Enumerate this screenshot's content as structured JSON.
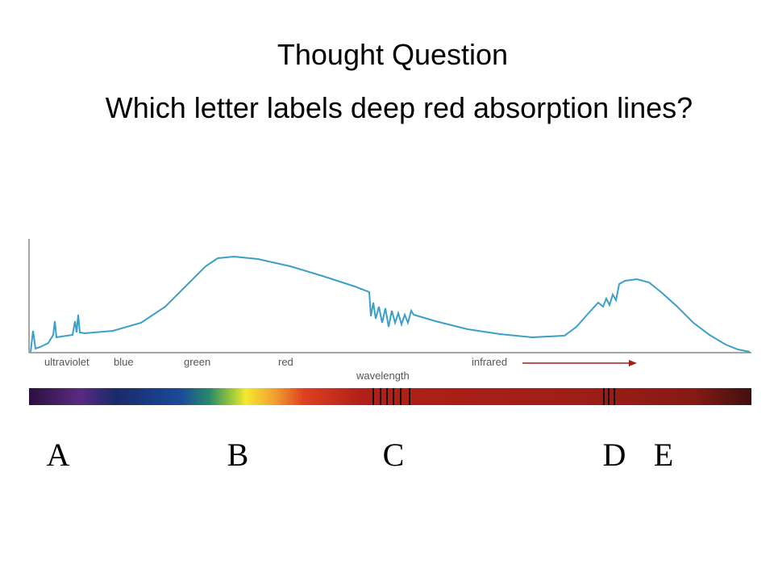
{
  "header": {
    "title": "Thought Question",
    "question": "Which letter labels deep red absorption lines?"
  },
  "diagram": {
    "band_labels": [
      "ultraviolet",
      "blue",
      "green",
      "red",
      "infrared"
    ],
    "axis_label": "wavelength"
  },
  "options": [
    "A",
    "B",
    "C",
    "D",
    "E"
  ]
}
